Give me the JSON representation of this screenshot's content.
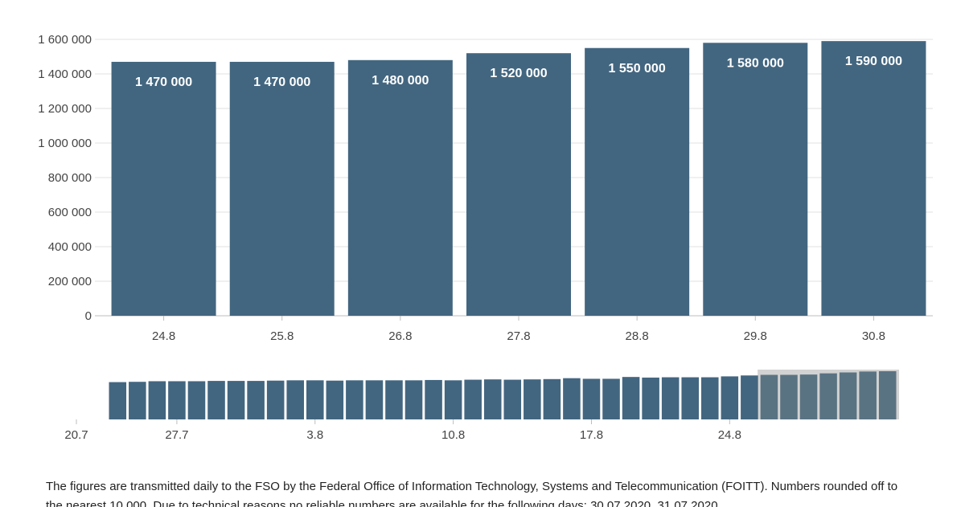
{
  "chart_data": [
    {
      "type": "bar",
      "categories": [
        "24.8",
        "25.8",
        "26.8",
        "27.8",
        "28.8",
        "29.8",
        "30.8"
      ],
      "values": [
        1470000,
        1470000,
        1480000,
        1520000,
        1550000,
        1580000,
        1590000
      ],
      "data_labels": [
        "1 470 000",
        "1 470 000",
        "1 480 000",
        "1 520 000",
        "1 550 000",
        "1 580 000",
        "1 590 000"
      ],
      "yticks": [
        0,
        200000,
        400000,
        600000,
        800000,
        1000000,
        1200000,
        1400000,
        1600000
      ],
      "ytick_labels": [
        "0",
        "200 000",
        "400 000",
        "600 000",
        "800 000",
        "1 000 000",
        "1 200 000",
        "1 400 000",
        "1 600 000"
      ],
      "ylim": [
        0,
        1600000
      ],
      "grid": true,
      "bar_color": "#436680"
    },
    {
      "type": "bar",
      "role": "overview-navigator",
      "x_tick_labels": [
        "20.7",
        "27.7",
        "3.8",
        "10.8",
        "17.8",
        "24.8"
      ],
      "values": [
        1230000,
        1240000,
        1260000,
        1260000,
        1260000,
        1270000,
        1270000,
        1270000,
        1280000,
        1290000,
        1290000,
        1280000,
        1290000,
        1290000,
        1290000,
        1290000,
        1300000,
        1290000,
        1310000,
        1320000,
        1310000,
        1320000,
        1330000,
        1360000,
        1340000,
        1340000,
        1400000,
        1380000,
        1390000,
        1390000,
        1390000,
        1420000,
        1450000,
        1470000,
        1470000,
        1480000,
        1520000,
        1550000,
        1580000,
        1590000
      ],
      "selected_range": [
        "24.8",
        "30.8"
      ],
      "bar_color": "#436680",
      "selected_bar_color": "#5a7383",
      "selection_color": "#d2d2d2"
    }
  ],
  "footnote": {
    "line1": "The figures are transmitted daily to the FSO by the Federal Office of Information Technology, Systems and Telecommunication (FOITT). Numbers rounded off to",
    "line2": "the nearest 10 000. Due to technical reasons no reliable numbers are available for the following days: 30.07.2020, 31.07.2020."
  }
}
